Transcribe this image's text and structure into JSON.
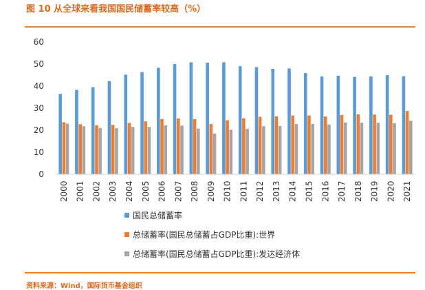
{
  "figure": {
    "title": "图 10 从全球来看我国国民储蓄率较高（%）",
    "footnote": "资料来源：Wind，国际货币基金组织"
  },
  "chart_data": {
    "type": "bar",
    "title": "图 10 从全球来看我国国民储蓄率较高（%）",
    "xlabel": "",
    "ylabel": "",
    "ylim": [
      0,
      60
    ],
    "yticks": [
      0,
      10,
      20,
      30,
      40,
      50,
      60
    ],
    "grid": false,
    "legend_position": "bottom",
    "categories": [
      "2000",
      "2001",
      "2002",
      "2003",
      "2004",
      "2005",
      "2006",
      "2007",
      "2008",
      "2009",
      "2010",
      "2011",
      "2012",
      "2013",
      "2014",
      "2015",
      "2016",
      "2017",
      "2018",
      "2019",
      "2020",
      "2021"
    ],
    "series": [
      {
        "name": "国民总储蓄率",
        "color": "#5b9bd5",
        "values": [
          36.5,
          38.3,
          39.5,
          42.3,
          45.2,
          46.4,
          48.3,
          50.0,
          50.8,
          50.6,
          50.8,
          49.0,
          48.6,
          47.8,
          48.0,
          45.9,
          44.4,
          44.7,
          44.2,
          44.4,
          45.0,
          44.5
        ]
      },
      {
        "name": "总储蓄率(国民总储蓄占GDP比重):世界",
        "color": "#ed7d31",
        "values": [
          23.6,
          22.7,
          22.2,
          22.4,
          23.3,
          24.0,
          25.1,
          25.3,
          25.0,
          22.8,
          24.5,
          25.4,
          26.1,
          26.3,
          26.7,
          26.7,
          26.2,
          26.9,
          27.2,
          27.1,
          27.0,
          28.7
        ]
      },
      {
        "name": "总储蓄率(国民总储蓄占GDP比重):发达经济体",
        "color": "#a5a5a5",
        "values": [
          23.0,
          21.8,
          21.0,
          20.9,
          21.5,
          21.5,
          22.2,
          22.1,
          20.7,
          18.5,
          20.2,
          20.6,
          21.8,
          21.9,
          22.8,
          22.8,
          22.6,
          23.5,
          23.4,
          23.4,
          23.2,
          24.3
        ]
      }
    ]
  }
}
